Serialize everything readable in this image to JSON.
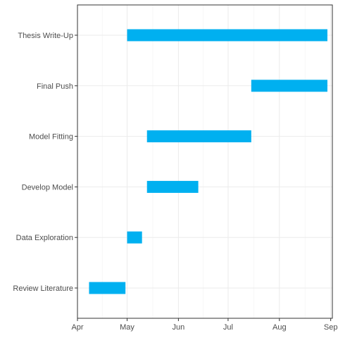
{
  "chart_data": {
    "type": "bar",
    "orientation": "horizontal-gantt",
    "title": "",
    "xlabel": "",
    "ylabel": "",
    "bar_color": "#00B0F0",
    "grid": true,
    "xlim": [
      "2016-04-01",
      "2016-09-02"
    ],
    "x_ticks": [
      {
        "date": "2016-04-01",
        "label": "Apr"
      },
      {
        "date": "2016-05-01",
        "label": "May"
      },
      {
        "date": "2016-06-01",
        "label": "Jun"
      },
      {
        "date": "2016-07-01",
        "label": "Jul"
      },
      {
        "date": "2016-08-01",
        "label": "Aug"
      },
      {
        "date": "2016-09-01",
        "label": "Sep"
      }
    ],
    "categories": [
      "Thesis Write-Up",
      "Final Push",
      "Model Fitting",
      "Develop Model",
      "Data Exploration",
      "Review Literature"
    ],
    "tasks": [
      {
        "name": "Thesis Write-Up",
        "start": "2016-05-01",
        "end": "2016-08-30"
      },
      {
        "name": "Final Push",
        "start": "2016-07-15",
        "end": "2016-08-30"
      },
      {
        "name": "Model Fitting",
        "start": "2016-05-13",
        "end": "2016-07-15"
      },
      {
        "name": "Develop Model",
        "start": "2016-05-13",
        "end": "2016-06-13"
      },
      {
        "name": "Data Exploration",
        "start": "2016-05-01",
        "end": "2016-05-10"
      },
      {
        "name": "Review Literature",
        "start": "2016-04-08",
        "end": "2016-04-30"
      }
    ]
  }
}
